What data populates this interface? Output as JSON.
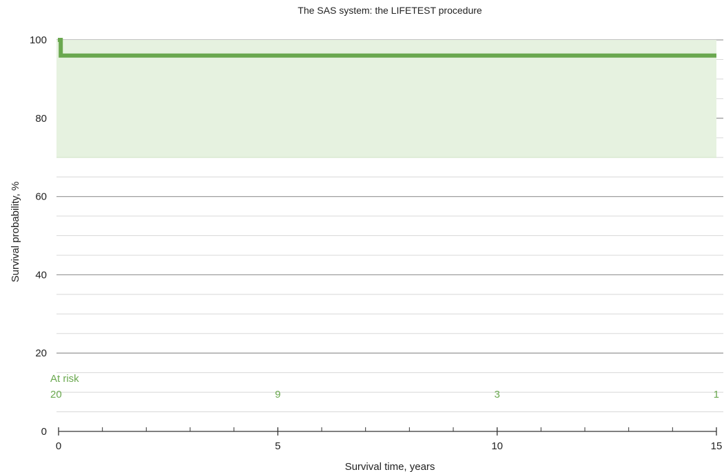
{
  "chart_data": {
    "type": "line",
    "title": "The SAS system: the LIFETEST procedure",
    "xlabel": "Survival time, years",
    "ylabel": "Survival probability, %",
    "xlim": [
      0,
      15
    ],
    "ylim": [
      0,
      100
    ],
    "x_ticks": [
      0,
      5,
      10,
      15
    ],
    "x_ticks_minor": [
      1,
      2,
      3,
      4,
      6,
      7,
      8,
      9,
      11,
      12,
      13,
      14
    ],
    "y_ticks": [
      0,
      20,
      40,
      60,
      80,
      100
    ],
    "y_minor_gridlines": [
      5,
      10,
      15,
      25,
      30,
      35,
      45,
      50,
      55,
      65,
      70,
      75,
      85,
      90,
      95
    ],
    "grid": true,
    "series": [
      {
        "steps": [
          [
            0,
            100
          ],
          [
            0.05,
            100
          ],
          [
            0.05,
            96
          ],
          [
            15,
            96
          ]
        ],
        "ci_band": {
          "x": [
            0,
            15
          ],
          "lower": 70,
          "upper": 100
        }
      }
    ],
    "at_risk": {
      "label": "At risk",
      "x": [
        0,
        5,
        10,
        15
      ],
      "values": [
        "20",
        "9",
        "3",
        "1"
      ],
      "y_label": 13.5,
      "y_values": 9.5
    },
    "colors": {
      "line": "#6aa84f",
      "band": "#e6f2e0",
      "band_edge": "#d0e6c6",
      "risk_text": "#6aa84f",
      "major_grid": "#9e9e9e",
      "minor_grid": "#d8d8d8",
      "axis": "#333333"
    }
  }
}
